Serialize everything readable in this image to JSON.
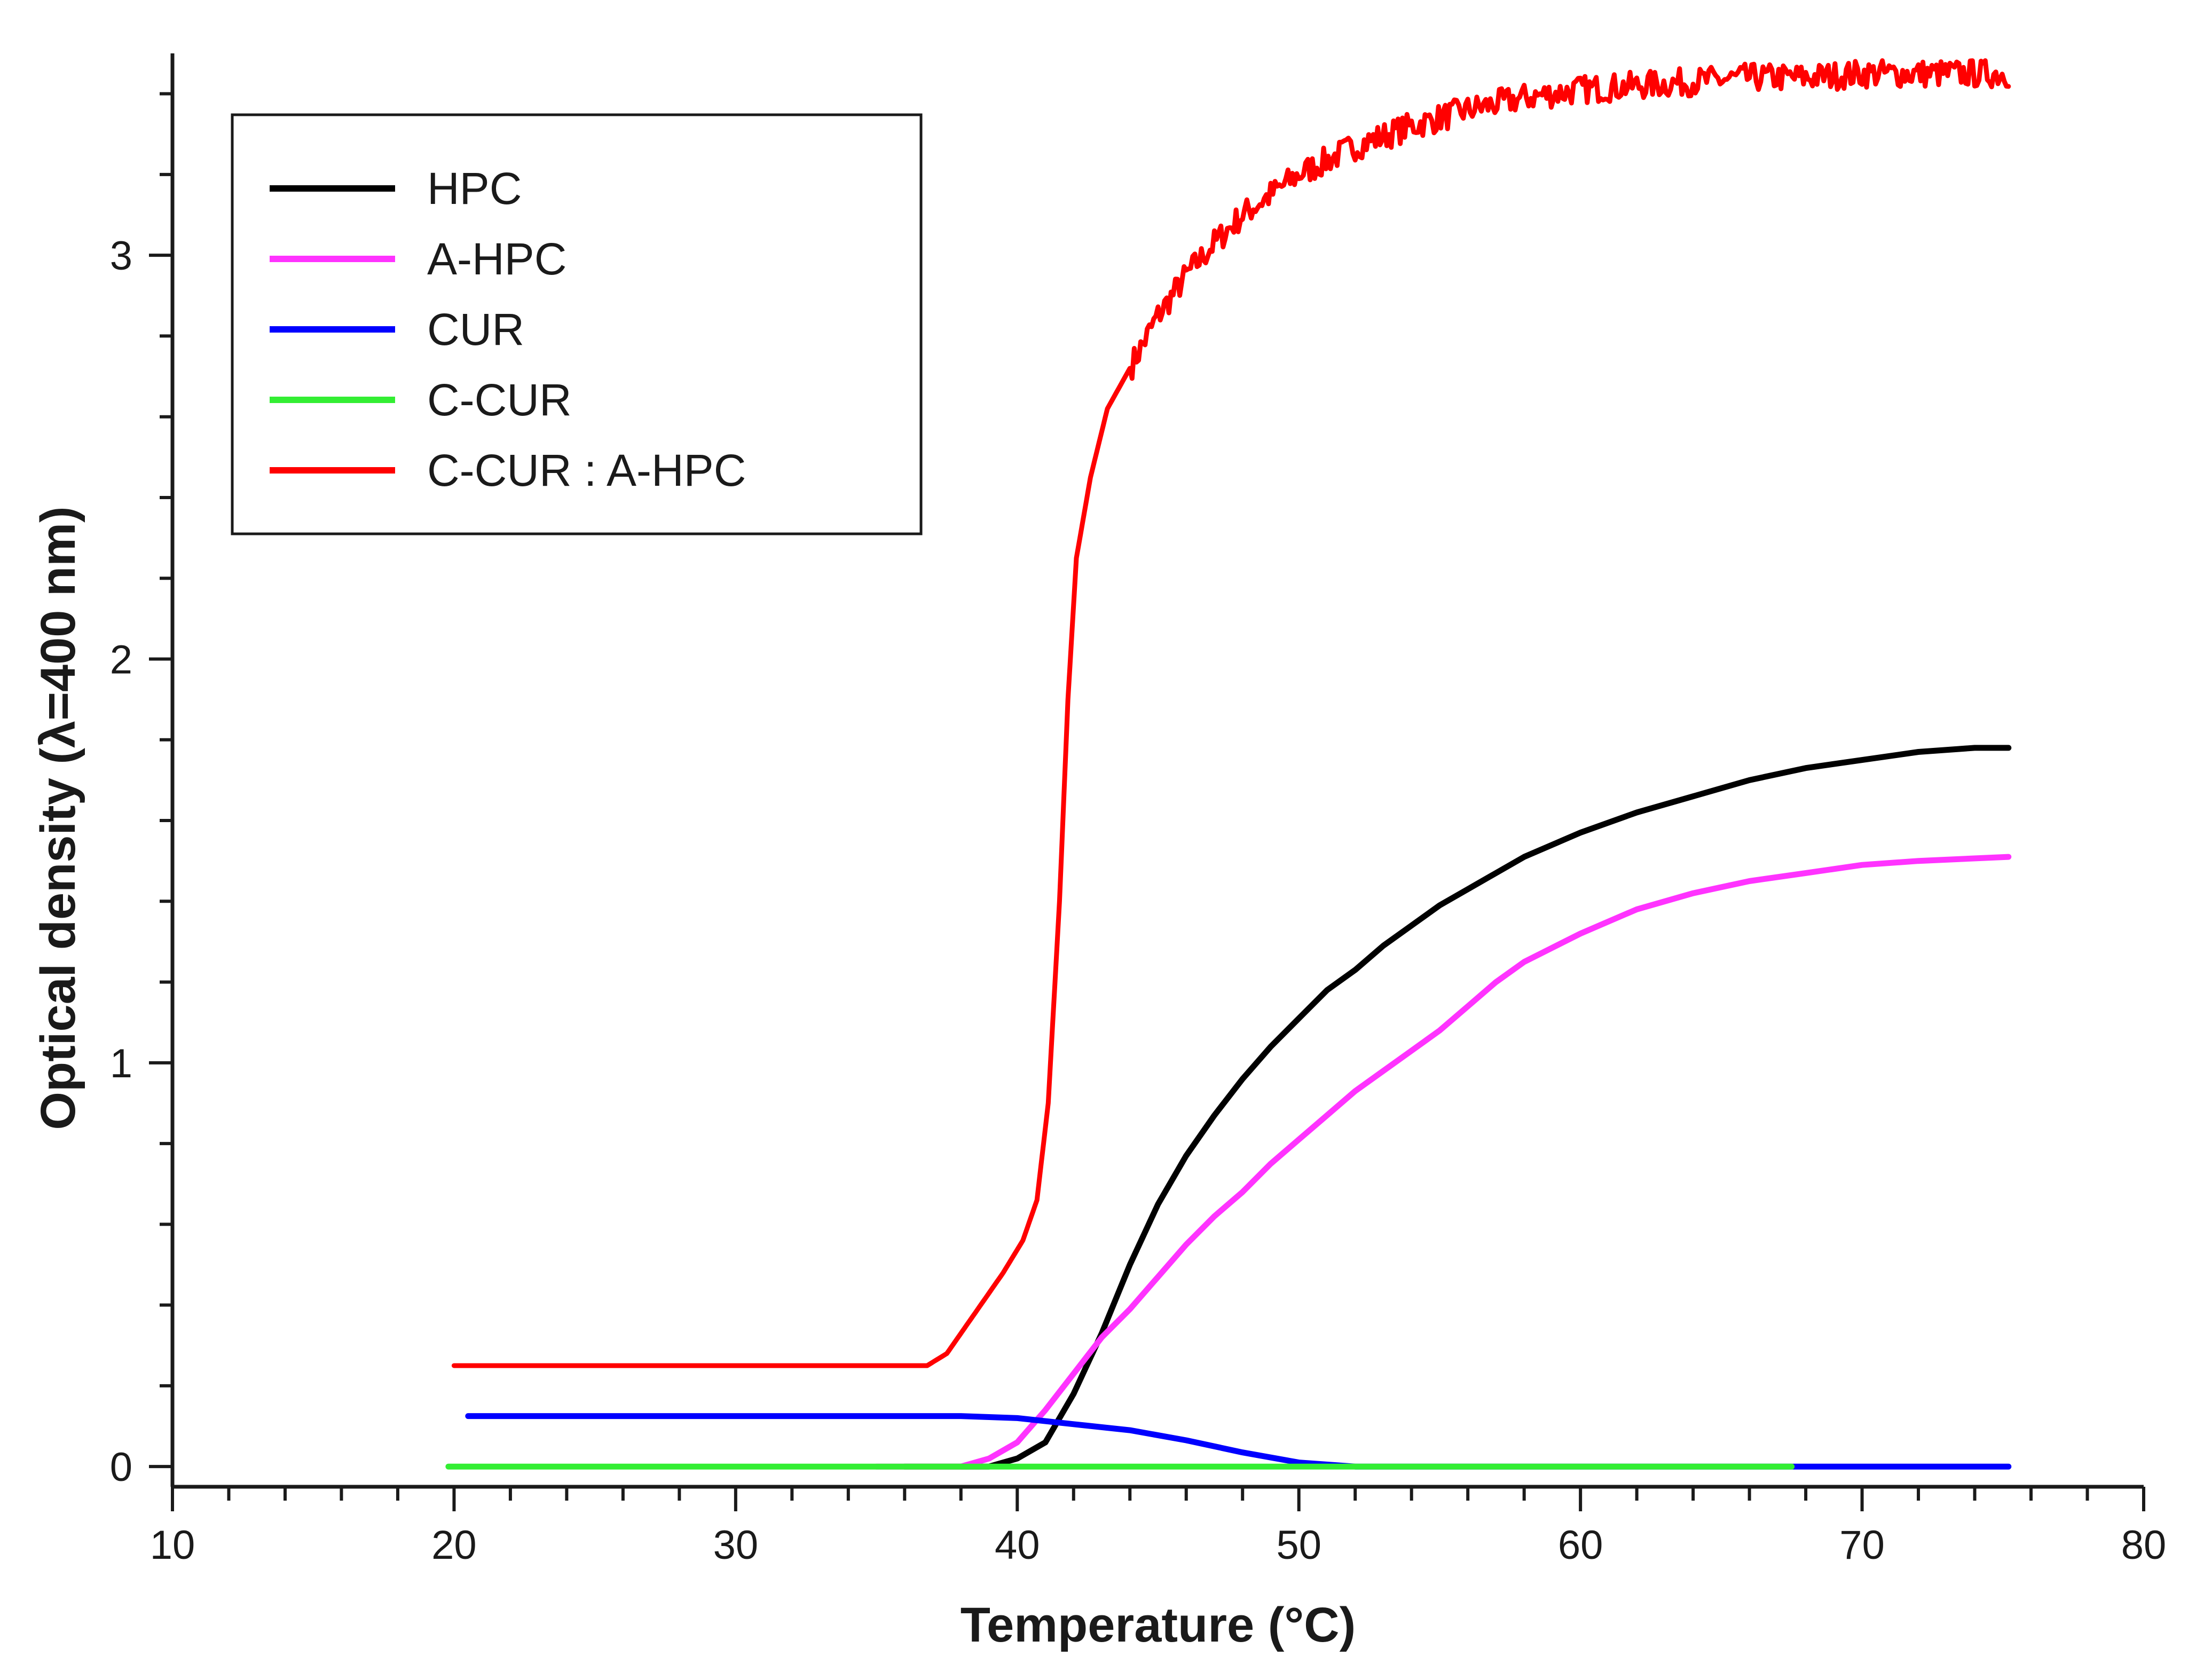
{
  "chart_data": {
    "type": "line",
    "title": "",
    "xlabel": "Temperature (°C)",
    "ylabel": "Optical density (λ=400 nm)",
    "xlim": [
      10,
      80
    ],
    "ylim": [
      -0.05,
      3.5
    ],
    "x_ticks": [
      10,
      20,
      30,
      40,
      50,
      60,
      70,
      80
    ],
    "x_tick_labels": [
      "10",
      "20",
      "30",
      "40",
      "50",
      "60",
      "70",
      "80"
    ],
    "y_ticks": [
      0,
      1,
      2,
      3
    ],
    "y_tick_labels": [
      "0",
      "1",
      "2",
      "3"
    ],
    "legend_position": "top-left",
    "series": [
      {
        "name": "HPC",
        "color": "#000000",
        "points": [
          [
            36,
            0.0
          ],
          [
            39,
            0.0
          ],
          [
            40,
            0.02
          ],
          [
            41,
            0.06
          ],
          [
            42,
            0.18
          ],
          [
            43,
            0.33
          ],
          [
            44,
            0.5
          ],
          [
            45,
            0.65
          ],
          [
            46,
            0.77
          ],
          [
            47,
            0.87
          ],
          [
            48,
            0.96
          ],
          [
            49,
            1.04
          ],
          [
            50,
            1.11
          ],
          [
            51,
            1.18
          ],
          [
            52,
            1.23
          ],
          [
            53,
            1.29
          ],
          [
            54,
            1.34
          ],
          [
            55,
            1.39
          ],
          [
            56,
            1.43
          ],
          [
            58,
            1.51
          ],
          [
            60,
            1.57
          ],
          [
            62,
            1.62
          ],
          [
            64,
            1.66
          ],
          [
            66,
            1.7
          ],
          [
            68,
            1.73
          ],
          [
            70,
            1.75
          ],
          [
            72,
            1.77
          ],
          [
            74,
            1.78
          ],
          [
            75.2,
            1.78
          ]
        ]
      },
      {
        "name": "A-HPC",
        "color": "#ff33ff",
        "points": [
          [
            35,
            0.0
          ],
          [
            38,
            0.0
          ],
          [
            39,
            0.02
          ],
          [
            40,
            0.06
          ],
          [
            41,
            0.14
          ],
          [
            42,
            0.23
          ],
          [
            43,
            0.32
          ],
          [
            44,
            0.39
          ],
          [
            45,
            0.47
          ],
          [
            46,
            0.55
          ],
          [
            47,
            0.62
          ],
          [
            48,
            0.68
          ],
          [
            49,
            0.75
          ],
          [
            50,
            0.81
          ],
          [
            51,
            0.87
          ],
          [
            52,
            0.93
          ],
          [
            53,
            0.98
          ],
          [
            54,
            1.03
          ],
          [
            55,
            1.08
          ],
          [
            56,
            1.14
          ],
          [
            57,
            1.2
          ],
          [
            58,
            1.25
          ],
          [
            60,
            1.32
          ],
          [
            62,
            1.38
          ],
          [
            64,
            1.42
          ],
          [
            66,
            1.45
          ],
          [
            68,
            1.47
          ],
          [
            70,
            1.49
          ],
          [
            72,
            1.5
          ],
          [
            75.2,
            1.51
          ]
        ]
      },
      {
        "name": "CUR",
        "color": "#0000ff",
        "points": [
          [
            20.5,
            0.125
          ],
          [
            25,
            0.125
          ],
          [
            30,
            0.125
          ],
          [
            35,
            0.125
          ],
          [
            38,
            0.125
          ],
          [
            40,
            0.12
          ],
          [
            42,
            0.105
          ],
          [
            44,
            0.09
          ],
          [
            46,
            0.065
          ],
          [
            48,
            0.035
          ],
          [
            50,
            0.01
          ],
          [
            52,
            0.0
          ],
          [
            60,
            0.0
          ],
          [
            68,
            0.0
          ],
          [
            75.2,
            0.0
          ]
        ]
      },
      {
        "name": "C-CUR",
        "color": "#33ee33",
        "points": [
          [
            19.8,
            0.0
          ],
          [
            30,
            0.0
          ],
          [
            40,
            0.0
          ],
          [
            50,
            0.0
          ],
          [
            60,
            0.0
          ],
          [
            67.5,
            0.0
          ]
        ]
      },
      {
        "name": "C-CUR : A-HPC",
        "color": "#ff0000",
        "points": [
          [
            20,
            0.25
          ],
          [
            25,
            0.25
          ],
          [
            30,
            0.25
          ],
          [
            35,
            0.25
          ],
          [
            36.8,
            0.25
          ],
          [
            37.5,
            0.28
          ],
          [
            38.5,
            0.38
          ],
          [
            39.5,
            0.48
          ],
          [
            40.2,
            0.56
          ],
          [
            40.7,
            0.66
          ],
          [
            41.1,
            0.9
          ],
          [
            41.5,
            1.4
          ],
          [
            41.8,
            1.9
          ],
          [
            42.1,
            2.25
          ],
          [
            42.6,
            2.45
          ],
          [
            43.2,
            2.62
          ],
          [
            44,
            2.72
          ],
          [
            45,
            2.85
          ],
          [
            46,
            2.95
          ],
          [
            47,
            3.03
          ],
          [
            48,
            3.1
          ],
          [
            49,
            3.15
          ],
          [
            50,
            3.2
          ],
          [
            52,
            3.27
          ],
          [
            54,
            3.32
          ],
          [
            56,
            3.36
          ],
          [
            58,
            3.39
          ],
          [
            60,
            3.41
          ],
          [
            62,
            3.42
          ],
          [
            64,
            3.43
          ],
          [
            66,
            3.44
          ],
          [
            68,
            3.44
          ],
          [
            70,
            3.45
          ],
          [
            72,
            3.45
          ],
          [
            74,
            3.45
          ],
          [
            75.2,
            3.45
          ]
        ]
      }
    ]
  }
}
